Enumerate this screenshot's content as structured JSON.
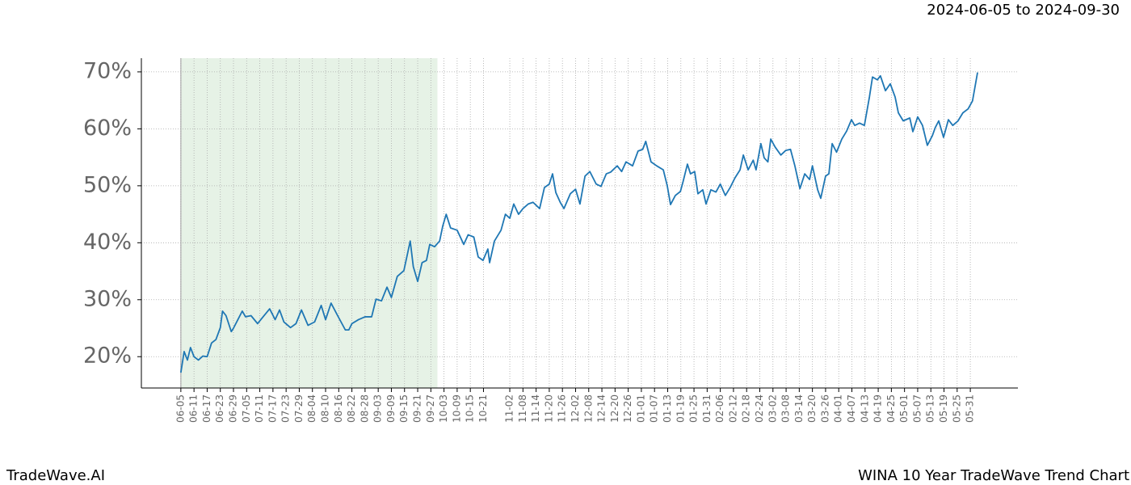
{
  "chart_data": {
    "type": "line",
    "title": "WINA 10 Year TradeWave Trend Chart",
    "subtitle": "2024-06-05 to 2024-09-30",
    "brand": "TradeWave.AI",
    "color": "#1f77b4",
    "shade": [
      0,
      117
    ],
    "shade_color": "#e6f2e6",
    "grid": true,
    "ylim": [
      14.5,
      72.4
    ],
    "yticks": [
      {
        "value": 20,
        "label": "20%"
      },
      {
        "value": 30,
        "label": "30%"
      },
      {
        "value": 40,
        "label": "40%"
      },
      {
        "value": 50,
        "label": "50%"
      },
      {
        "value": 60,
        "label": "60%"
      },
      {
        "value": 70,
        "label": "70%"
      }
    ],
    "xlim": [
      -18,
      381.7
    ],
    "xticks": [
      {
        "value": 0,
        "label": "06-05"
      },
      {
        "value": 6,
        "label": "06-11"
      },
      {
        "value": 12,
        "label": "06-17"
      },
      {
        "value": 18,
        "label": "06-23"
      },
      {
        "value": 24,
        "label": "06-29"
      },
      {
        "value": 30,
        "label": "07-05"
      },
      {
        "value": 36,
        "label": "07-11"
      },
      {
        "value": 42,
        "label": "07-17"
      },
      {
        "value": 48,
        "label": "07-23"
      },
      {
        "value": 54,
        "label": "07-29"
      },
      {
        "value": 60,
        "label": "08-04"
      },
      {
        "value": 66,
        "label": "08-10"
      },
      {
        "value": 72,
        "label": "08-16"
      },
      {
        "value": 78,
        "label": "08-22"
      },
      {
        "value": 84,
        "label": "08-28"
      },
      {
        "value": 90,
        "label": "09-03"
      },
      {
        "value": 96,
        "label": "09-09"
      },
      {
        "value": 102,
        "label": "09-15"
      },
      {
        "value": 108,
        "label": "09-21"
      },
      {
        "value": 114,
        "label": "09-27"
      },
      {
        "value": 120,
        "label": "10-03"
      },
      {
        "value": 126,
        "label": "10-09"
      },
      {
        "value": 132,
        "label": "10-15"
      },
      {
        "value": 138,
        "label": "10-21"
      },
      {
        "value": 150,
        "label": "11-02"
      },
      {
        "value": 156,
        "label": "11-08"
      },
      {
        "value": 162,
        "label": "11-14"
      },
      {
        "value": 168,
        "label": "11-20"
      },
      {
        "value": 174,
        "label": "11-26"
      },
      {
        "value": 180,
        "label": "12-02"
      },
      {
        "value": 186,
        "label": "12-08"
      },
      {
        "value": 192,
        "label": "12-14"
      },
      {
        "value": 198,
        "label": "12-20"
      },
      {
        "value": 204,
        "label": "12-26"
      },
      {
        "value": 210,
        "label": "01-01"
      },
      {
        "value": 216,
        "label": "01-07"
      },
      {
        "value": 222,
        "label": "01-13"
      },
      {
        "value": 228,
        "label": "01-19"
      },
      {
        "value": 234,
        "label": "01-25"
      },
      {
        "value": 240,
        "label": "01-31"
      },
      {
        "value": 246,
        "label": "02-06"
      },
      {
        "value": 252,
        "label": "02-12"
      },
      {
        "value": 258,
        "label": "02-18"
      },
      {
        "value": 264,
        "label": "02-24"
      },
      {
        "value": 270,
        "label": "03-02"
      },
      {
        "value": 276,
        "label": "03-08"
      },
      {
        "value": 282,
        "label": "03-14"
      },
      {
        "value": 288,
        "label": "03-20"
      },
      {
        "value": 294,
        "label": "03-26"
      },
      {
        "value": 300,
        "label": "04-01"
      },
      {
        "value": 306,
        "label": "04-07"
      },
      {
        "value": 312,
        "label": "04-13"
      },
      {
        "value": 318,
        "label": "04-19"
      },
      {
        "value": 324,
        "label": "04-25"
      },
      {
        "value": 330,
        "label": "05-01"
      },
      {
        "value": 336,
        "label": "05-07"
      },
      {
        "value": 342,
        "label": "05-13"
      },
      {
        "value": 348,
        "label": "05-19"
      },
      {
        "value": 354,
        "label": "05-25"
      },
      {
        "value": 360,
        "label": "05-31"
      }
    ],
    "x": [
      0,
      1.5,
      3,
      4.4,
      6,
      8,
      10,
      12,
      14,
      16,
      18,
      19,
      20.6,
      23,
      24,
      26,
      28,
      29.5,
      32,
      35,
      37.5,
      40.5,
      43,
      45,
      47,
      50,
      52.5,
      55,
      58,
      61,
      64,
      66,
      68.5,
      71.5,
      75,
      76.6,
      78,
      81,
      84,
      87,
      89,
      91.5,
      94,
      96,
      98.7,
      101.7,
      104.6,
      106,
      108,
      110,
      112,
      113.5,
      115.7,
      118,
      119.4,
      121,
      123,
      126,
      129,
      131,
      133.6,
      135.6,
      137.8,
      140,
      140.8,
      143,
      146,
      148,
      150,
      151.8,
      154,
      156,
      158.4,
      160.6,
      163.6,
      165.8,
      168,
      169.5,
      171,
      173,
      174.7,
      177.6,
      180,
      182,
      184.3,
      186.5,
      189.4,
      191.6,
      194,
      196,
      199,
      201,
      203,
      206,
      208.5,
      210.6,
      212,
      214.4,
      217,
      220,
      221.8,
      223.3,
      225.5,
      227.8,
      229,
      231,
      232.4,
      234.3,
      235.8,
      238,
      239.5,
      241.7,
      244,
      246,
      248.3,
      250.5,
      252.7,
      255,
      256.5,
      258.7,
      261,
      262.3,
      264.5,
      266,
      267.7,
      269,
      271,
      273.6,
      275.8,
      278,
      280,
      282.3,
      284.5,
      286.7,
      288,
      290.4,
      291.8,
      294,
      295.5,
      297,
      299,
      301.4,
      303.6,
      305.8,
      307.3,
      309.5,
      311.7,
      314,
      315.4,
      317.6,
      319,
      321.3,
      323.5,
      325.7,
      327.2,
      329.4,
      332.4,
      333.8,
      336,
      338.2,
      340.4,
      342.7,
      344,
      345.6,
      347.8,
      350,
      352,
      354.4,
      356.6,
      359,
      361,
      363.3
    ],
    "values": [
      17.2,
      20.9,
      19.4,
      21.6,
      20,
      19.4,
      20.1,
      20,
      22.4,
      23,
      25.1,
      28,
      27.2,
      24.4,
      25,
      26.5,
      28,
      27,
      27.2,
      25.8,
      27,
      28.4,
      26.5,
      28.2,
      26.1,
      25.1,
      25.8,
      28.2,
      25.5,
      26.1,
      29,
      26.5,
      29.4,
      27.2,
      24.7,
      24.7,
      25.8,
      26.5,
      27,
      27,
      30.1,
      29.8,
      32.2,
      30.4,
      34.1,
      35.1,
      40.3,
      35.8,
      33.2,
      36.5,
      36.9,
      39.7,
      39.3,
      40.3,
      42.9,
      45,
      42.6,
      42.2,
      39.7,
      41.4,
      41,
      37.5,
      36.9,
      38.9,
      36.5,
      40.3,
      42.2,
      45,
      44.3,
      46.8,
      45,
      46,
      46.8,
      47.1,
      46,
      49.7,
      50.3,
      52.1,
      48.8,
      47.1,
      46,
      48.6,
      49.4,
      46.8,
      51.7,
      52.5,
      50.3,
      49.9,
      52.1,
      52.4,
      53.5,
      52.5,
      54.2,
      53.5,
      56.1,
      56.4,
      57.8,
      54.2,
      53.5,
      52.8,
      50,
      46.7,
      48.3,
      49,
      50.7,
      53.8,
      52.1,
      52.5,
      48.6,
      49.3,
      46.8,
      49.3,
      48.9,
      50.3,
      48.3,
      49.7,
      51.4,
      52.8,
      55.4,
      52.8,
      54.5,
      52.8,
      57.4,
      54.9,
      54.2,
      58.2,
      56.8,
      55.4,
      56.2,
      56.4,
      53.5,
      49.5,
      52.1,
      51.1,
      53.5,
      49.3,
      47.8,
      51.7,
      52.1,
      57.4,
      55.9,
      58.2,
      59.6,
      61.6,
      60.6,
      61,
      60.6,
      65.6,
      69.1,
      68.6,
      69.3,
      66.7,
      67.9,
      65.6,
      62.8,
      61.4,
      61.9,
      59.5,
      62.1,
      60.6,
      57.1,
      58.8,
      60.2,
      61.4,
      58.5,
      61.6,
      60.6,
      61.4,
      62.8,
      63.5,
      64.9,
      69.9
    ]
  }
}
